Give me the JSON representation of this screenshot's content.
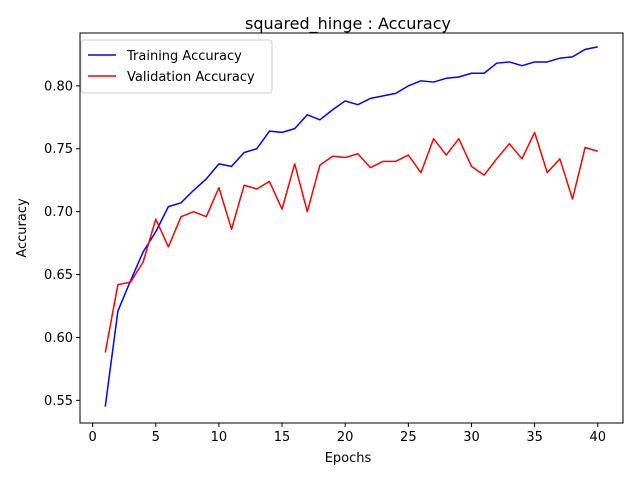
{
  "chart_data": {
    "type": "line",
    "title": "squared_hinge : Accuracy",
    "xlabel": "Epochs",
    "ylabel": "Accuracy",
    "xlim": [
      -1,
      42
    ],
    "ylim": [
      0.532,
      0.842
    ],
    "x_ticks": [
      0,
      5,
      10,
      15,
      20,
      25,
      30,
      35,
      40
    ],
    "y_ticks": [
      0.55,
      0.6,
      0.65,
      0.7,
      0.75,
      0.8
    ],
    "y_tick_labels": [
      "0.55",
      "0.60",
      "0.65",
      "0.70",
      "0.75",
      "0.80"
    ],
    "grid": false,
    "legend_position": "top-left",
    "x": [
      1,
      2,
      3,
      4,
      5,
      6,
      7,
      8,
      9,
      10,
      11,
      12,
      13,
      14,
      15,
      16,
      17,
      18,
      19,
      20,
      21,
      22,
      23,
      24,
      25,
      26,
      27,
      28,
      29,
      30,
      31,
      32,
      33,
      34,
      35,
      36,
      37,
      38,
      39,
      40
    ],
    "series": [
      {
        "name": "Training Accuracy",
        "color": "#0000ff",
        "values": [
          0.545,
          0.621,
          0.645,
          0.668,
          0.684,
          0.704,
          0.707,
          0.717,
          0.726,
          0.738,
          0.736,
          0.747,
          0.75,
          0.764,
          0.763,
          0.766,
          0.777,
          0.773,
          0.781,
          0.788,
          0.785,
          0.79,
          0.792,
          0.794,
          0.8,
          0.804,
          0.803,
          0.806,
          0.807,
          0.81,
          0.81,
          0.818,
          0.819,
          0.816,
          0.819,
          0.819,
          0.822,
          0.823,
          0.829,
          0.831
        ]
      },
      {
        "name": "Validation Accuracy",
        "color": "#ff0000",
        "values": [
          0.588,
          0.642,
          0.644,
          0.66,
          0.694,
          0.672,
          0.696,
          0.7,
          0.696,
          0.719,
          0.686,
          0.721,
          0.718,
          0.724,
          0.702,
          0.738,
          0.7,
          0.737,
          0.744,
          0.743,
          0.746,
          0.735,
          0.74,
          0.74,
          0.745,
          0.731,
          0.758,
          0.745,
          0.758,
          0.736,
          0.729,
          0.742,
          0.754,
          0.742,
          0.763,
          0.731,
          0.742,
          0.71,
          0.751,
          0.748
        ]
      }
    ]
  }
}
